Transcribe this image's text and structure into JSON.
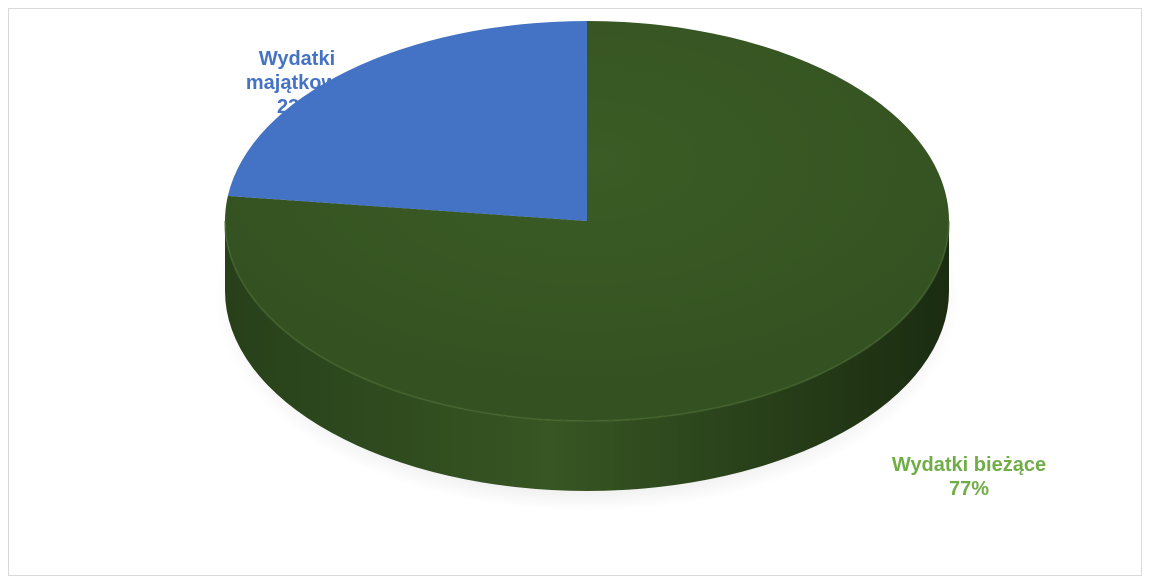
{
  "chart_data": {
    "type": "pie",
    "title": "",
    "slices": [
      {
        "label": "Wydatki majątkowe",
        "value": 23,
        "percent_text": "23%",
        "color": "#4472c4"
      },
      {
        "label": "Wydatki bieżące",
        "value": 77,
        "percent_text": "77%",
        "color": "#375623"
      }
    ],
    "label_colors": {
      "majatkowe": "#4472c4",
      "biezace": "#70ad47"
    },
    "style": "3d",
    "legend": "none"
  },
  "labels": {
    "majatkowe_line1": "Wydatki",
    "majatkowe_line2": "majątkowe",
    "majatkowe_pct": "23%",
    "biezace_name": "Wydatki bieżące",
    "biezace_pct": "77%"
  }
}
